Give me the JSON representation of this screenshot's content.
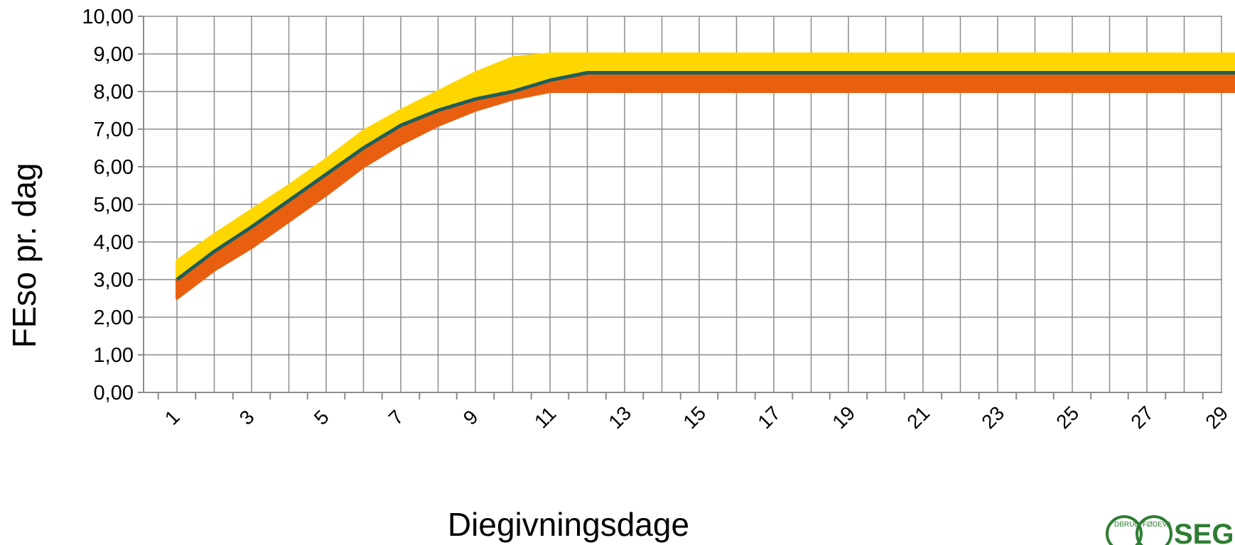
{
  "chart_data": {
    "type": "line",
    "title": "",
    "xlabel": "Diegivningsdage",
    "ylabel": "FEso pr. dag",
    "x": [
      1,
      2,
      3,
      4,
      5,
      6,
      7,
      8,
      9,
      10,
      11,
      12,
      13,
      14,
      15,
      16,
      17,
      18,
      19,
      20,
      21,
      22,
      23,
      24,
      25,
      26,
      27,
      28,
      29
    ],
    "x_tick_labels": [
      "1",
      "3",
      "5",
      "7",
      "9",
      "11",
      "13",
      "15",
      "17",
      "19",
      "21",
      "23",
      "25",
      "27",
      "29"
    ],
    "y_tick_labels": [
      "0,00",
      "1,00",
      "2,00",
      "3,00",
      "4,00",
      "5,00",
      "6,00",
      "7,00",
      "8,00",
      "9,00",
      "10,00"
    ],
    "ylim": [
      0,
      10
    ],
    "grid": true,
    "series": [
      {
        "values": [
          3.5,
          4.2,
          4.85,
          5.5,
          6.2,
          6.95,
          7.5,
          8.0,
          8.5,
          8.9,
          9.0,
          9.0,
          9.0,
          9.0,
          9.0,
          9.0,
          9.0,
          9.0,
          9.0,
          9.0,
          9.0,
          9.0,
          9.0,
          9.0,
          9.0,
          9.0,
          9.0,
          9.0,
          9.0
        ],
        "color": "#FFD700"
      },
      {
        "values": [
          2.5,
          3.25,
          3.85,
          4.55,
          5.25,
          6.0,
          6.6,
          7.1,
          7.5,
          7.8,
          8.0,
          8.0,
          8.0,
          8.0,
          8.0,
          8.0,
          8.0,
          8.0,
          8.0,
          8.0,
          8.0,
          8.0,
          8.0,
          8.0,
          8.0,
          8.0,
          8.0,
          8.0,
          8.0
        ],
        "color": "#E8600F"
      },
      {
        "values": [
          3.0,
          3.75,
          4.4,
          5.1,
          5.8,
          6.5,
          7.1,
          7.5,
          7.8,
          8.0,
          8.3,
          8.5,
          8.5,
          8.5,
          8.5,
          8.5,
          8.5,
          8.5,
          8.5,
          8.5,
          8.5,
          8.5,
          8.5,
          8.5,
          8.5,
          8.5,
          8.5,
          8.5,
          8.5
        ],
        "color": "#1E5E5A"
      }
    ]
  },
  "logo": {
    "text": "SEG",
    "ring_text_1": "DBRUG",
    "ring_text_2": "FØDEVA",
    "color": "#2E7D32"
  }
}
